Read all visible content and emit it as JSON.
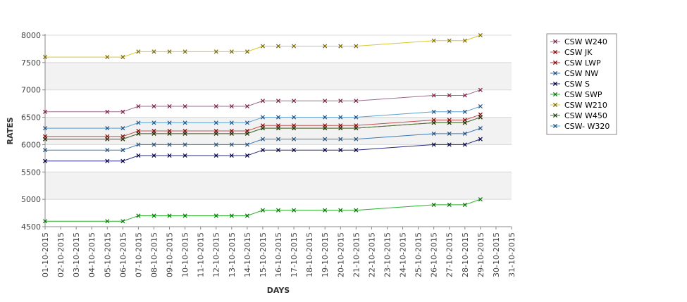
{
  "chart_data": {
    "type": "line",
    "xlabel": "DAYS",
    "ylabel": "RATES",
    "ylim": [
      4500,
      8000
    ],
    "y_ticks": [
      4500,
      5000,
      5500,
      6000,
      6500,
      7000,
      7500,
      8000
    ],
    "categories": [
      "01-10-2015",
      "02-10-2015",
      "03-10-2015",
      "04-10-2015",
      "05-10-2015",
      "06-10-2015",
      "07-10-2015",
      "08-10-2015",
      "09-10-2015",
      "10-10-2015",
      "11-10-2015",
      "12-10-2015",
      "13-10-2015",
      "14-10-2015",
      "15-10-2015",
      "16-10-2015",
      "17-10-2015",
      "18-10-2015",
      "19-10-2015",
      "20-10-2015",
      "21-10-2015",
      "22-10-2015",
      "23-10-2015",
      "24-10-2015",
      "25-10-2015",
      "26-10-2015",
      "27-10-2015",
      "28-10-2015",
      "29-10-2015",
      "30-10-2015",
      "31-10-2015"
    ],
    "grid": "horizontal alternating bands",
    "legend_position": "right",
    "marker": "x",
    "series": [
      {
        "name": "CSW  W240",
        "color": "#9b6b8f",
        "marker_color": "#7a1f3f",
        "values": [
          6600,
          null,
          null,
          null,
          6600,
          6600,
          6700,
          6700,
          6700,
          6700,
          null,
          6700,
          6700,
          6700,
          6800,
          6800,
          6800,
          null,
          6800,
          6800,
          6800,
          null,
          null,
          null,
          null,
          6900,
          6900,
          6900,
          7000,
          null,
          null
        ]
      },
      {
        "name": "CSW JK",
        "color": "#c05050",
        "marker_color": "#8b0000",
        "values": [
          6150,
          null,
          null,
          null,
          6150,
          6150,
          6250,
          6250,
          6250,
          6250,
          null,
          6250,
          6250,
          6250,
          6350,
          6350,
          6350,
          null,
          6350,
          6350,
          6350,
          null,
          null,
          null,
          null,
          6450,
          6450,
          6450,
          6550,
          null,
          null
        ]
      },
      {
        "name": "CSW LWP",
        "color": "#b03030",
        "marker_color": "#8b0000",
        "values": [
          6100,
          null,
          null,
          null,
          6100,
          6100,
          6200,
          6200,
          6200,
          6200,
          null,
          6200,
          6200,
          6200,
          6300,
          6300,
          6300,
          null,
          6300,
          6300,
          6300,
          null,
          null,
          null,
          null,
          6400,
          6400,
          6400,
          6500,
          null,
          null
        ]
      },
      {
        "name": "CSW NW",
        "color": "#3a78b8",
        "marker_color": "#1f4e79",
        "values": [
          5900,
          null,
          null,
          null,
          5900,
          5900,
          6000,
          6000,
          6000,
          6000,
          null,
          6000,
          6000,
          6000,
          6100,
          6100,
          6100,
          null,
          6100,
          6100,
          6100,
          null,
          null,
          null,
          null,
          6200,
          6200,
          6200,
          6300,
          null,
          null
        ]
      },
      {
        "name": "CSW S",
        "color": "#2a2a80",
        "marker_color": "#000040",
        "values": [
          5700,
          null,
          null,
          null,
          5700,
          5700,
          5800,
          5800,
          5800,
          5800,
          null,
          5800,
          5800,
          5800,
          5900,
          5900,
          5900,
          null,
          5900,
          5900,
          5900,
          null,
          null,
          null,
          null,
          6000,
          6000,
          6000,
          6100,
          null,
          null
        ]
      },
      {
        "name": "CSW SWP",
        "color": "#2ab32a",
        "marker_color": "#0a6e0a",
        "values": [
          4600,
          null,
          null,
          null,
          4600,
          4600,
          4700,
          4700,
          4700,
          4700,
          null,
          4700,
          4700,
          4700,
          4800,
          4800,
          4800,
          null,
          4800,
          4800,
          4800,
          null,
          null,
          null,
          null,
          4900,
          4900,
          4900,
          5000,
          null,
          null
        ]
      },
      {
        "name": "CSW W210",
        "color": "#d8c830",
        "marker_color": "#7a6a00",
        "values": [
          7600,
          null,
          null,
          null,
          7600,
          7600,
          7700,
          7700,
          7700,
          7700,
          null,
          7700,
          7700,
          7700,
          7800,
          7800,
          7800,
          null,
          7800,
          7800,
          7800,
          null,
          null,
          null,
          null,
          7900,
          7900,
          7900,
          8000,
          null,
          null
        ]
      },
      {
        "name": "CSW W450",
        "color": "#4a7a3a",
        "marker_color": "#1a3a10",
        "values": [
          6100,
          null,
          null,
          null,
          6100,
          6100,
          6200,
          6200,
          6200,
          6200,
          null,
          6200,
          6200,
          6200,
          6300,
          6300,
          6300,
          null,
          6300,
          6300,
          6300,
          null,
          null,
          null,
          null,
          6400,
          6400,
          6400,
          6500,
          null,
          null
        ]
      },
      {
        "name": "CSW- W320",
        "color": "#5aa0d0",
        "marker_color": "#1f5080",
        "values": [
          6300,
          null,
          null,
          null,
          6300,
          6300,
          6400,
          6400,
          6400,
          6400,
          null,
          6400,
          6400,
          6400,
          6500,
          6500,
          6500,
          null,
          6500,
          6500,
          6500,
          null,
          null,
          null,
          null,
          6600,
          6600,
          6600,
          6700,
          null,
          null
        ]
      }
    ]
  }
}
